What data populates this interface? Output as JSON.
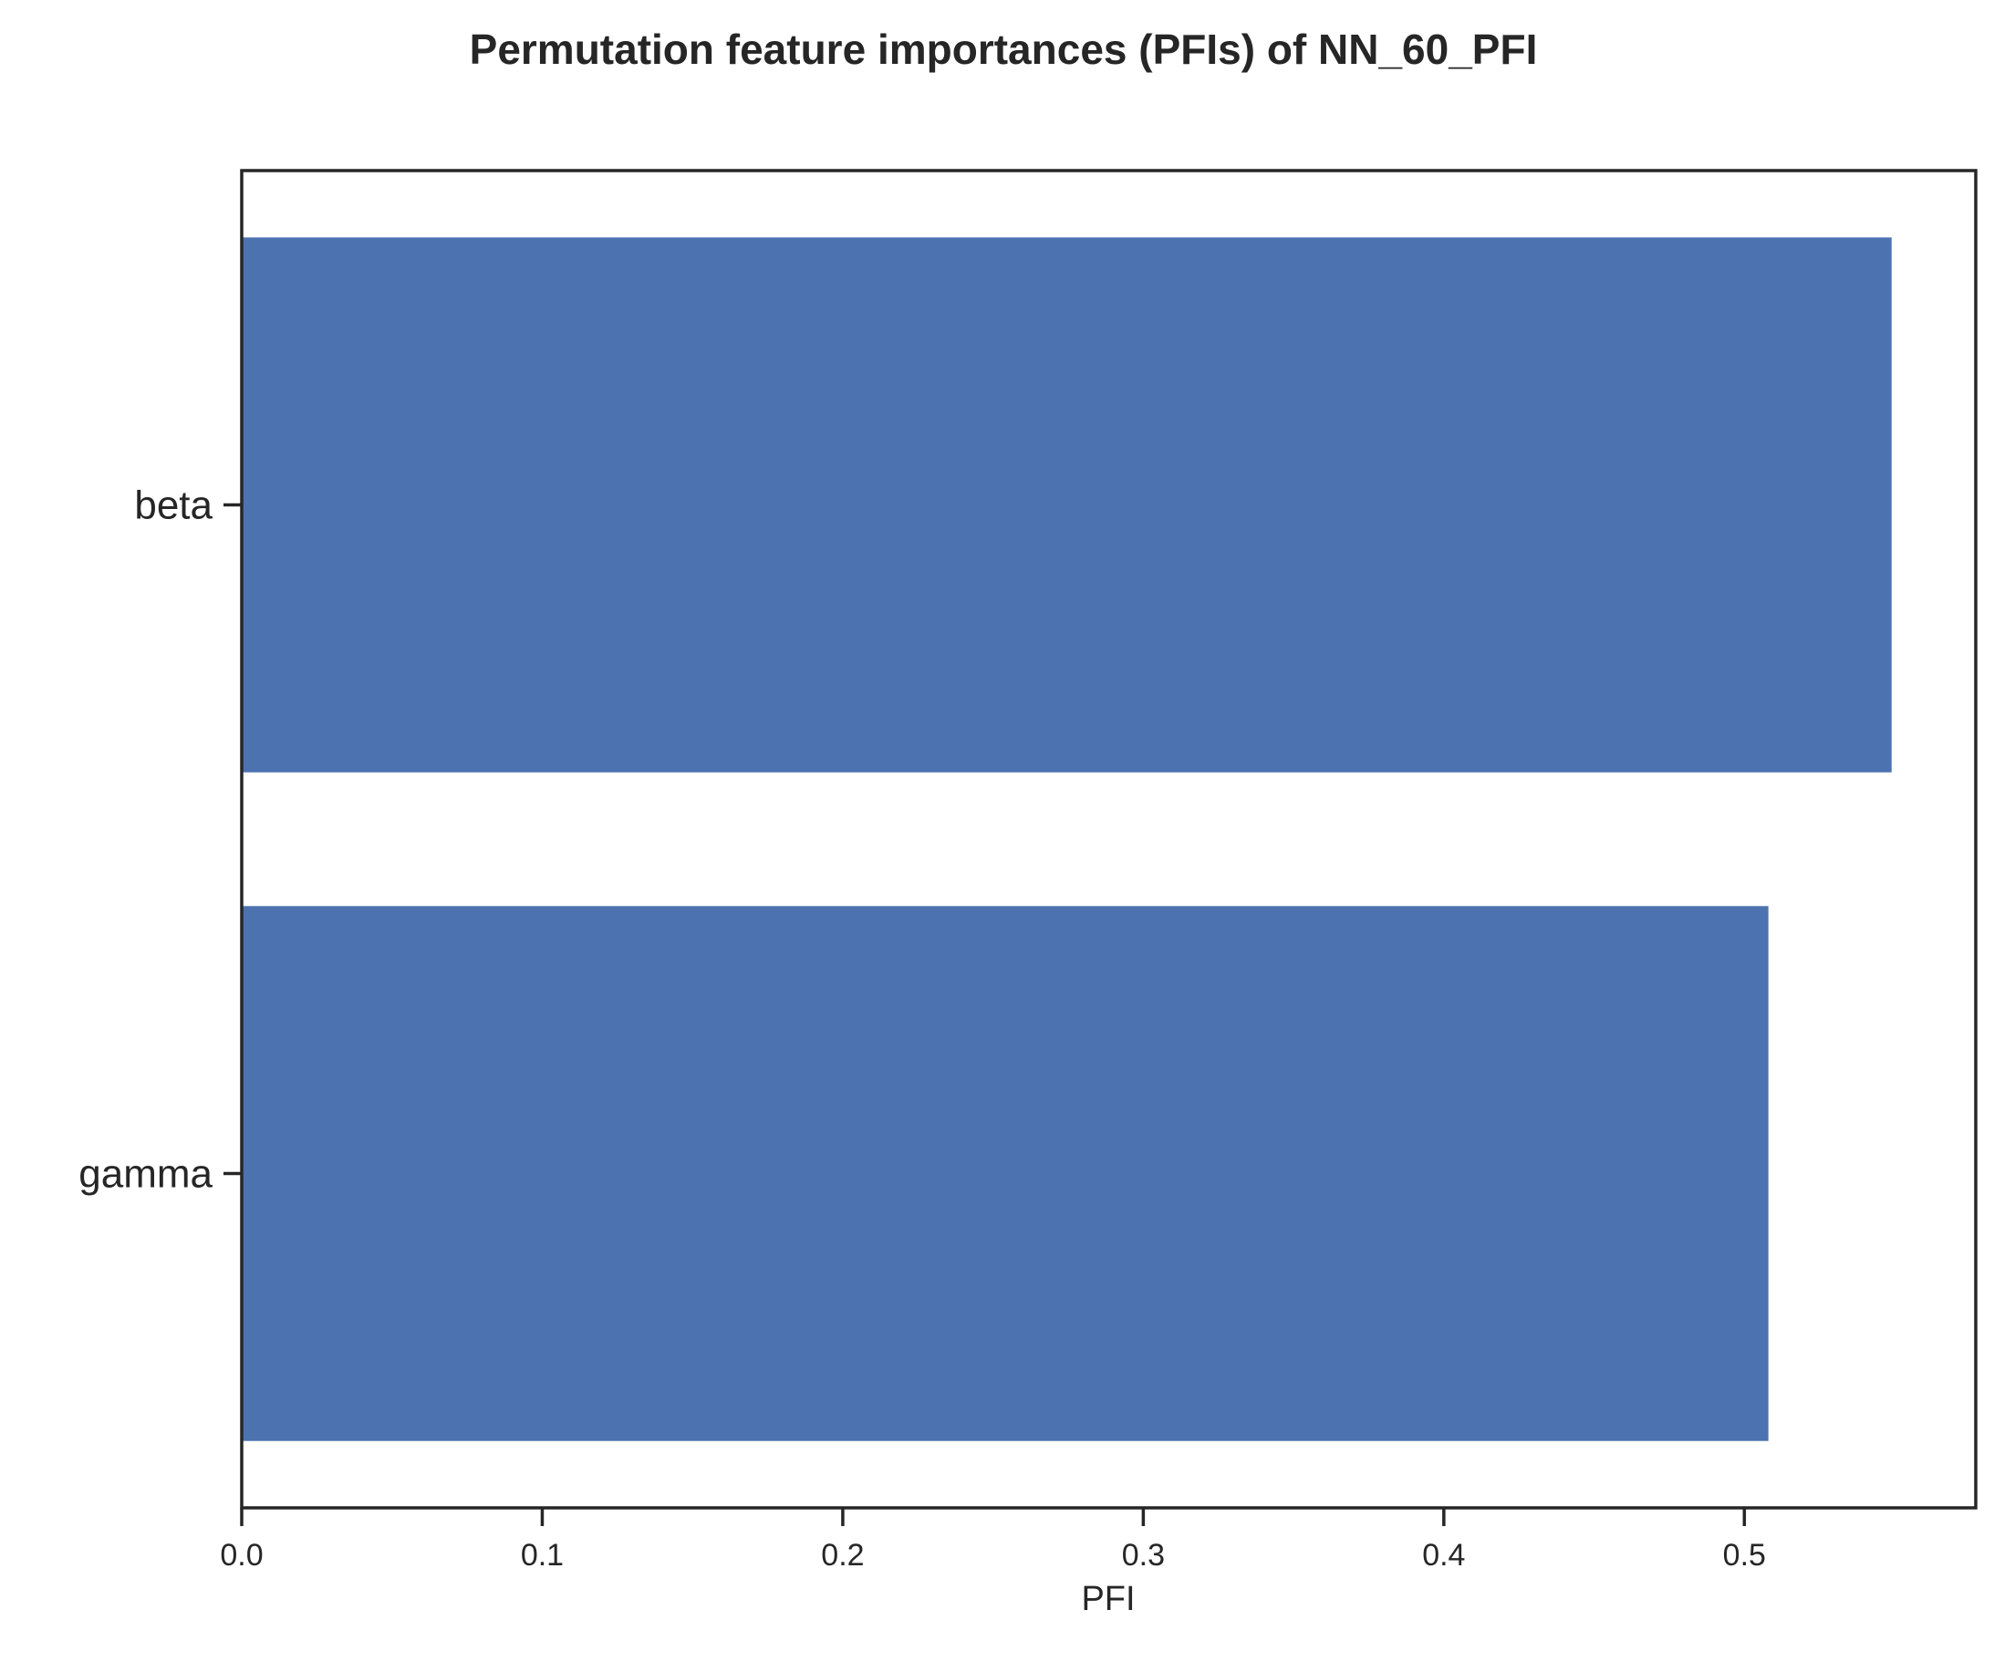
{
  "chart_data": {
    "type": "bar",
    "orientation": "horizontal",
    "title": "Permutation feature importances (PFIs) of NN_60_PFI",
    "xlabel": "PFI",
    "ylabel": "",
    "categories": [
      "beta",
      "gamma"
    ],
    "values": [
      0.549,
      0.508
    ],
    "xlim": [
      0,
      0.577
    ],
    "xticks": [
      "0.0",
      "0.1",
      "0.2",
      "0.3",
      "0.4",
      "0.5"
    ],
    "bar_color": "#4c72b0",
    "grid": false,
    "legend": "none"
  }
}
